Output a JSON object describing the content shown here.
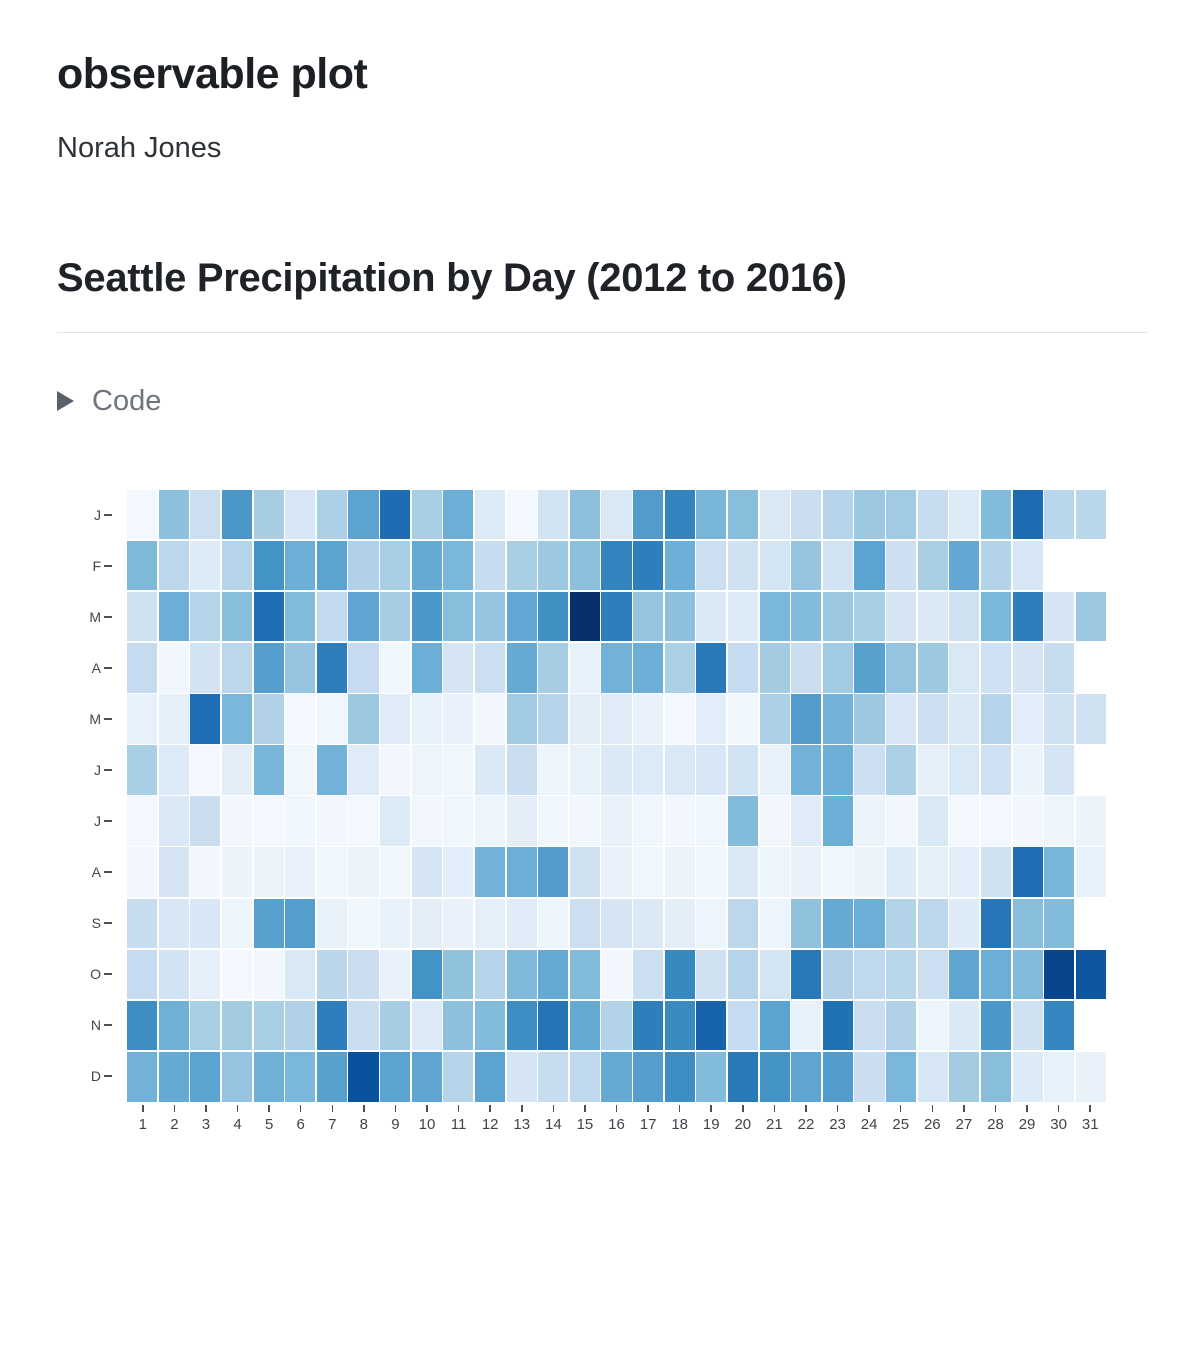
{
  "page": {
    "title": "observable plot",
    "author": "Norah Jones"
  },
  "section": {
    "heading": "Seattle Precipitation by Day (2012 to 2016)"
  },
  "code_toggle": {
    "label": "Code",
    "icon": "triangle-right-icon",
    "state": "collapsed"
  },
  "chart_data": {
    "type": "heatmap",
    "title": "Seattle Precipitation by Day (2012 to 2016)",
    "xlabel": "",
    "ylabel": "",
    "x_ticks": [
      1,
      2,
      3,
      4,
      5,
      6,
      7,
      8,
      9,
      10,
      11,
      12,
      13,
      14,
      15,
      16,
      17,
      18,
      19,
      20,
      21,
      22,
      23,
      24,
      25,
      26,
      27,
      28,
      29,
      30,
      31
    ],
    "y_tick_labels": [
      "J",
      "F",
      "M",
      "A",
      "M",
      "J",
      "J",
      "A",
      "S",
      "O",
      "N",
      "D"
    ],
    "values_unit": "relative mean precipitation intensity, 0 = none (white) to 1 = max (dark navy), estimated from cell color",
    "color_scale": {
      "name": "Blues",
      "domain": [
        0,
        1
      ],
      "stops": [
        "#f7fbff",
        "#deebf7",
        "#c6dbef",
        "#9ecae1",
        "#6baed6",
        "#4292c6",
        "#2171b5",
        "#08519c",
        "#08306b"
      ]
    },
    "grid": false,
    "legend_position": "none",
    "months": [
      {
        "label": "J",
        "month": "January",
        "days": 31,
        "values": [
          0.02,
          0.42,
          0.22,
          0.6,
          0.35,
          0.16,
          0.33,
          0.55,
          0.765,
          0.345,
          0.5,
          0.135,
          0.025,
          0.19,
          0.42,
          0.15,
          0.58,
          0.68,
          0.47,
          0.43,
          0.145,
          0.23,
          0.3,
          0.38,
          0.37,
          0.24,
          0.135,
          0.44,
          0.77,
          0.295,
          0.29
        ]
      },
      {
        "label": "F",
        "month": "February",
        "days": 29,
        "values": [
          0.45,
          0.28,
          0.13,
          0.3,
          0.62,
          0.5,
          0.55,
          0.32,
          0.34,
          0.52,
          0.46,
          0.24,
          0.34,
          0.38,
          0.42,
          0.68,
          0.7,
          0.5,
          0.22,
          0.2,
          0.18,
          0.4,
          0.195,
          0.55,
          0.215,
          0.345,
          0.525,
          0.31,
          0.155
        ]
      },
      {
        "label": "M",
        "month": "March",
        "days": 31,
        "values": [
          0.2,
          0.5,
          0.3,
          0.43,
          0.76,
          0.44,
          0.26,
          0.54,
          0.35,
          0.6,
          0.43,
          0.4,
          0.53,
          0.63,
          1.0,
          0.7,
          0.4,
          0.42,
          0.15,
          0.13,
          0.46,
          0.44,
          0.38,
          0.34,
          0.17,
          0.14,
          0.2,
          0.46,
          0.7,
          0.17,
          0.38
        ]
      },
      {
        "label": "A",
        "month": "April",
        "days": 30,
        "values": [
          0.25,
          0.03,
          0.19,
          0.28,
          0.57,
          0.4,
          0.7,
          0.25,
          0.04,
          0.5,
          0.17,
          0.22,
          0.52,
          0.35,
          0.08,
          0.48,
          0.5,
          0.33,
          0.72,
          0.25,
          0.36,
          0.23,
          0.37,
          0.56,
          0.4,
          0.38,
          0.15,
          0.21,
          0.17,
          0.24
        ]
      },
      {
        "label": "M",
        "month": "May",
        "days": 31,
        "values": [
          0.08,
          0.09,
          0.76,
          0.46,
          0.32,
          0.02,
          0.04,
          0.38,
          0.12,
          0.08,
          0.07,
          0.03,
          0.37,
          0.3,
          0.1,
          0.12,
          0.07,
          0.02,
          0.11,
          0.04,
          0.33,
          0.58,
          0.48,
          0.38,
          0.16,
          0.22,
          0.14,
          0.3,
          0.11,
          0.2,
          0.2
        ]
      },
      {
        "label": "J",
        "month": "June",
        "days": 30,
        "values": [
          0.34,
          0.13,
          0.02,
          0.1,
          0.47,
          0.04,
          0.48,
          0.12,
          0.03,
          0.05,
          0.04,
          0.14,
          0.23,
          0.05,
          0.08,
          0.14,
          0.13,
          0.15,
          0.16,
          0.19,
          0.08,
          0.48,
          0.5,
          0.22,
          0.33,
          0.09,
          0.15,
          0.21,
          0.06,
          0.17
        ]
      },
      {
        "label": "J",
        "month": "July",
        "days": 31,
        "values": [
          0.02,
          0.14,
          0.23,
          0.03,
          0.02,
          0.04,
          0.03,
          0.02,
          0.13,
          0.03,
          0.04,
          0.05,
          0.1,
          0.04,
          0.03,
          0.07,
          0.04,
          0.03,
          0.04,
          0.44,
          0.03,
          0.12,
          0.5,
          0.06,
          0.03,
          0.15,
          0.02,
          0.02,
          0.03,
          0.05,
          0.06
        ]
      },
      {
        "label": "A",
        "month": "August",
        "days": 31,
        "values": [
          0.03,
          0.17,
          0.03,
          0.06,
          0.06,
          0.07,
          0.04,
          0.06,
          0.04,
          0.17,
          0.11,
          0.48,
          0.5,
          0.58,
          0.2,
          0.07,
          0.04,
          0.06,
          0.04,
          0.14,
          0.05,
          0.07,
          0.04,
          0.06,
          0.13,
          0.09,
          0.11,
          0.2,
          0.76,
          0.47,
          0.08
        ]
      },
      {
        "label": "S",
        "month": "September",
        "days": 30,
        "values": [
          0.24,
          0.16,
          0.16,
          0.05,
          0.56,
          0.57,
          0.08,
          0.04,
          0.08,
          0.1,
          0.07,
          0.09,
          0.12,
          0.05,
          0.22,
          0.17,
          0.14,
          0.1,
          0.05,
          0.28,
          0.05,
          0.41,
          0.52,
          0.5,
          0.31,
          0.28,
          0.13,
          0.73,
          0.43,
          0.44
        ]
      },
      {
        "label": "O",
        "month": "October",
        "days": 31,
        "values": [
          0.25,
          0.19,
          0.09,
          0.02,
          0.03,
          0.15,
          0.29,
          0.23,
          0.07,
          0.62,
          0.41,
          0.3,
          0.45,
          0.52,
          0.44,
          0.03,
          0.22,
          0.66,
          0.2,
          0.3,
          0.18,
          0.72,
          0.32,
          0.27,
          0.29,
          0.22,
          0.54,
          0.5,
          0.44,
          0.92,
          0.85
        ]
      },
      {
        "label": "N",
        "month": "November",
        "days": 30,
        "values": [
          0.64,
          0.49,
          0.34,
          0.36,
          0.34,
          0.32,
          0.7,
          0.23,
          0.35,
          0.13,
          0.42,
          0.44,
          0.64,
          0.74,
          0.52,
          0.31,
          0.7,
          0.65,
          0.8,
          0.25,
          0.55,
          0.08,
          0.75,
          0.23,
          0.32,
          0.05,
          0.14,
          0.6,
          0.2,
          0.67
        ]
      },
      {
        "label": "D",
        "month": "December",
        "days": 31,
        "values": [
          0.48,
          0.52,
          0.55,
          0.4,
          0.49,
          0.46,
          0.56,
          0.87,
          0.55,
          0.54,
          0.3,
          0.55,
          0.17,
          0.24,
          0.27,
          0.52,
          0.57,
          0.64,
          0.44,
          0.72,
          0.62,
          0.54,
          0.58,
          0.23,
          0.46,
          0.16,
          0.36,
          0.43,
          0.13,
          0.08,
          0.07
        ]
      }
    ]
  }
}
